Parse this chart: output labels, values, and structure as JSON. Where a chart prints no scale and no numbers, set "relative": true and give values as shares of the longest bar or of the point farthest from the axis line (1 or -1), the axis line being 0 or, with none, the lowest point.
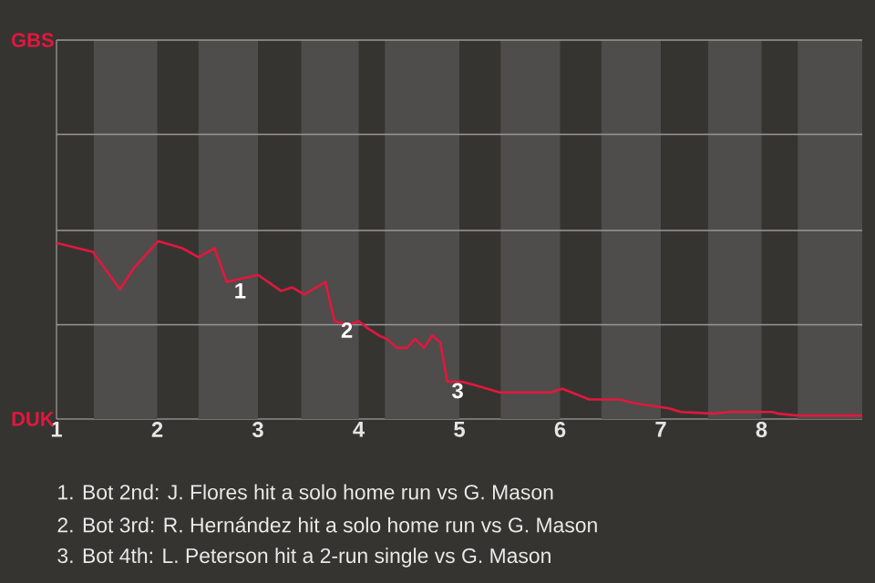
{
  "chart_data": {
    "type": "line",
    "relative": true,
    "xlim": [
      1,
      9
    ],
    "xticks": [
      1,
      2,
      3,
      4,
      5,
      6,
      7,
      8
    ],
    "ref_lines": [
      {
        "axis": "y",
        "value": 0.53,
        "color": "#999999"
      },
      {
        "axis": "y",
        "value": 1.06,
        "color": "#999999"
      },
      {
        "axis": "y",
        "value": 1.6,
        "color": "#999999"
      },
      {
        "axis": "y",
        "value": 2.13,
        "color": "#999999"
      }
    ],
    "bands": [
      {
        "axis": "x",
        "from": 1.37,
        "to": 2,
        "color": "#4e4d4b"
      },
      {
        "axis": "x",
        "from": 2.41,
        "to": 3,
        "color": "#4e4d4b"
      },
      {
        "axis": "x",
        "from": 3.43,
        "to": 4,
        "color": "#4e4d4b"
      },
      {
        "axis": "x",
        "from": 4.26,
        "to": 5,
        "color": "#4e4d4b"
      },
      {
        "axis": "x",
        "from": 5.41,
        "to": 6,
        "color": "#4e4d4b"
      },
      {
        "axis": "x",
        "from": 6.41,
        "to": 7,
        "color": "#4e4d4b"
      },
      {
        "axis": "x",
        "from": 7.47,
        "to": 8,
        "color": "#4e4d4b"
      },
      {
        "axis": "x",
        "from": 8.36,
        "to": 9,
        "color": "#4e4d4b"
      }
    ],
    "series": [
      {
        "color": "#e3173e",
        "x": [
          1.0,
          1.36,
          1.63,
          1.77,
          2.01,
          2.25,
          2.41,
          2.57,
          2.69,
          3.0,
          3.23,
          3.34,
          3.46,
          3.67,
          3.76,
          3.9,
          4.0,
          4.09,
          4.2,
          4.28,
          4.38,
          4.48,
          4.56,
          4.65,
          4.73,
          4.81,
          4.88,
          5.02,
          5.16,
          5.4,
          5.61,
          5.91,
          6.02,
          6.29,
          6.49,
          6.59,
          6.73,
          7.08,
          7.2,
          7.52,
          7.67,
          8.11,
          8.17,
          8.35,
          9.0
        ],
        "values": [
          0.99,
          0.94,
          0.73,
          0.85,
          1,
          0.96,
          0.91,
          0.96,
          0.77,
          0.81,
          0.72,
          0.74,
          0.7,
          0.77,
          0.55,
          0.53,
          0.55,
          0.51,
          0.47,
          0.45,
          0.4,
          0.4,
          0.45,
          0.4,
          0.47,
          0.43,
          0.21,
          0.21,
          0.19,
          0.15,
          0.15,
          0.15,
          0.17,
          0.11,
          0.11,
          0.11,
          0.09,
          0.06,
          0.04,
          0.03,
          0.04,
          0.04,
          0.03,
          0.02,
          0.02
        ]
      }
    ],
    "annotations": [
      "GBS",
      "DUK",
      {
        "text": "1",
        "x": 2.75,
        "y": 0.77
      },
      {
        "text": "2",
        "x": 3.81,
        "y": 0.55
      },
      {
        "text": "3",
        "x": 4.91,
        "y": 0.21
      },
      "1. Bot 2nd: J. Flores hit a solo home run vs G. Mason",
      "2. Bot 3rd: R. Hernández hit a solo home run vs G. Mason",
      "3. Bot 4th: L. Peterson hit a 2-run single vs G. Mason"
    ]
  }
}
